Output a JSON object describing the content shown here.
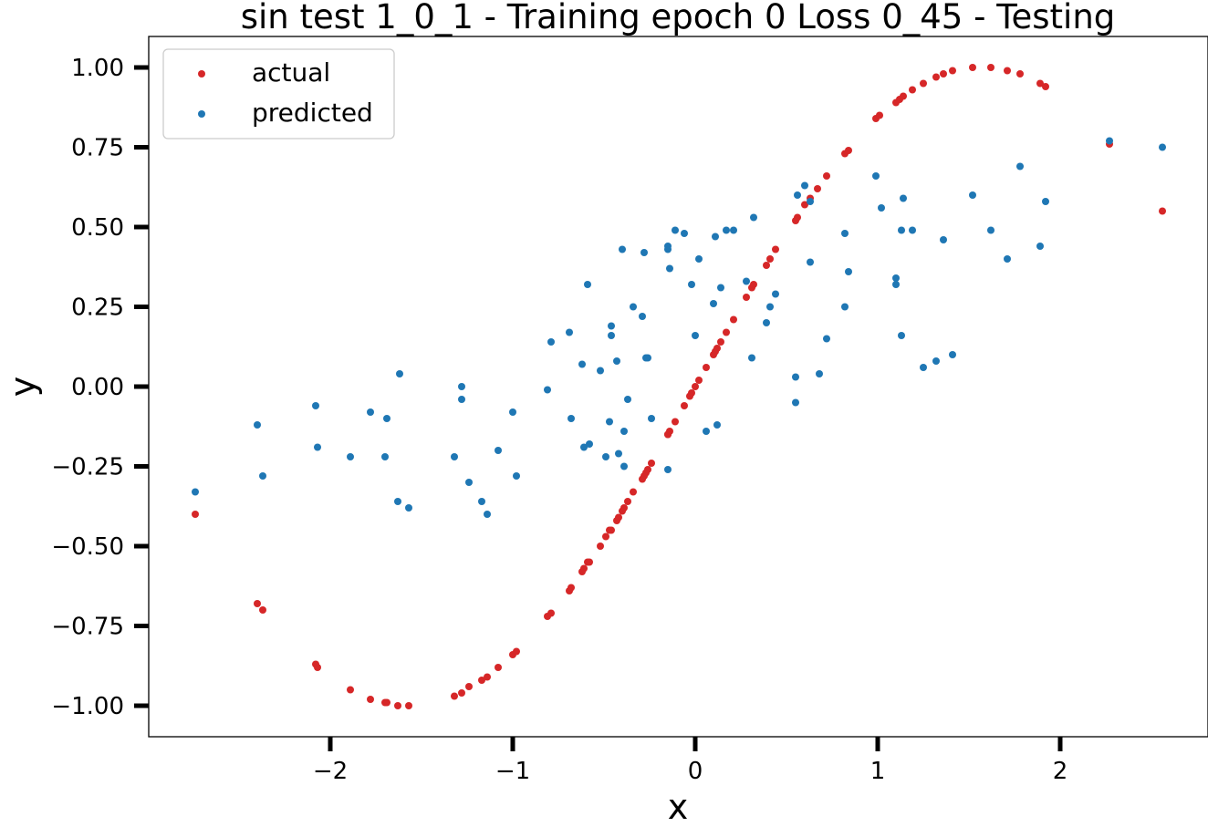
{
  "chart_data": {
    "type": "scatter",
    "title": "sin test 1_0_1 - Training epoch 0 Loss 0_45 - Testing",
    "xlabel": "x",
    "ylabel": "y",
    "xlim": [
      -3.0,
      2.8
    ],
    "ylim": [
      -1.1,
      1.1
    ],
    "xticks": [
      -2,
      -1,
      0,
      1,
      2
    ],
    "xtick_labels": [
      "−2",
      "−1",
      "0",
      "1",
      "2"
    ],
    "yticks": [
      1.0,
      0.75,
      0.5,
      0.25,
      0.0,
      -0.25,
      -0.5,
      -0.75,
      -1.0
    ],
    "ytick_labels": [
      "1.00",
      "0.75",
      "0.50",
      "0.25",
      "0.00",
      "−0.25",
      "−0.50",
      "−0.75",
      "−1.00"
    ],
    "grid": false,
    "legend": "top-left",
    "series": [
      {
        "name": "actual",
        "color": "#d62728",
        "points": [
          [
            -2.74,
            -0.4
          ],
          [
            -2.4,
            -0.68
          ],
          [
            -2.37,
            -0.7
          ],
          [
            -2.08,
            -0.87
          ],
          [
            -2.07,
            -0.88
          ],
          [
            -1.89,
            -0.95
          ],
          [
            -1.78,
            -0.98
          ],
          [
            -1.7,
            -0.99
          ],
          [
            -1.69,
            -0.99
          ],
          [
            -1.63,
            -1.0
          ],
          [
            -1.57,
            -1.0
          ],
          [
            -1.32,
            -0.97
          ],
          [
            -1.28,
            -0.96
          ],
          [
            -1.24,
            -0.94
          ],
          [
            -1.17,
            -0.92
          ],
          [
            -1.14,
            -0.91
          ],
          [
            -1.08,
            -0.88
          ],
          [
            -1.0,
            -0.84
          ],
          [
            -0.98,
            -0.83
          ],
          [
            -0.81,
            -0.72
          ],
          [
            -0.79,
            -0.71
          ],
          [
            -0.69,
            -0.64
          ],
          [
            -0.68,
            -0.63
          ],
          [
            -0.62,
            -0.58
          ],
          [
            -0.61,
            -0.57
          ],
          [
            -0.59,
            -0.55
          ],
          [
            -0.58,
            -0.55
          ],
          [
            -0.52,
            -0.5
          ],
          [
            -0.49,
            -0.47
          ],
          [
            -0.47,
            -0.45
          ],
          [
            -0.46,
            -0.45
          ],
          [
            -0.43,
            -0.42
          ],
          [
            -0.42,
            -0.41
          ],
          [
            -0.4,
            -0.39
          ],
          [
            -0.39,
            -0.38
          ],
          [
            -0.37,
            -0.36
          ],
          [
            -0.34,
            -0.33
          ],
          [
            -0.29,
            -0.29
          ],
          [
            -0.28,
            -0.28
          ],
          [
            -0.27,
            -0.27
          ],
          [
            -0.26,
            -0.26
          ],
          [
            -0.24,
            -0.24
          ],
          [
            -0.15,
            -0.15
          ],
          [
            -0.15,
            -0.15
          ],
          [
            -0.14,
            -0.14
          ],
          [
            -0.11,
            -0.11
          ],
          [
            -0.06,
            -0.06
          ],
          [
            -0.03,
            -0.03
          ],
          [
            -0.02,
            -0.02
          ],
          [
            0.0,
            0.0
          ],
          [
            0.02,
            0.02
          ],
          [
            0.06,
            0.06
          ],
          [
            0.1,
            0.1
          ],
          [
            0.11,
            0.11
          ],
          [
            0.12,
            0.12
          ],
          [
            0.14,
            0.14
          ],
          [
            0.17,
            0.17
          ],
          [
            0.21,
            0.21
          ],
          [
            0.28,
            0.28
          ],
          [
            0.31,
            0.31
          ],
          [
            0.32,
            0.32
          ],
          [
            0.39,
            0.38
          ],
          [
            0.41,
            0.4
          ],
          [
            0.44,
            0.43
          ],
          [
            0.55,
            0.52
          ],
          [
            0.56,
            0.53
          ],
          [
            0.6,
            0.57
          ],
          [
            0.63,
            0.59
          ],
          [
            0.67,
            0.62
          ],
          [
            0.72,
            0.66
          ],
          [
            0.82,
            0.73
          ],
          [
            0.84,
            0.74
          ],
          [
            0.99,
            0.84
          ],
          [
            1.01,
            0.85
          ],
          [
            1.1,
            0.89
          ],
          [
            1.12,
            0.9
          ],
          [
            1.14,
            0.91
          ],
          [
            1.19,
            0.93
          ],
          [
            1.25,
            0.95
          ],
          [
            1.32,
            0.97
          ],
          [
            1.36,
            0.98
          ],
          [
            1.41,
            0.99
          ],
          [
            1.52,
            1.0
          ],
          [
            1.62,
            1.0
          ],
          [
            1.71,
            0.99
          ],
          [
            1.78,
            0.98
          ],
          [
            1.89,
            0.95
          ],
          [
            1.92,
            0.94
          ],
          [
            2.27,
            0.76
          ],
          [
            2.56,
            0.55
          ]
        ]
      },
      {
        "name": "predicted",
        "color": "#1f77b4",
        "points": [
          [
            -2.74,
            -0.33
          ],
          [
            -2.4,
            -0.12
          ],
          [
            -2.37,
            -0.28
          ],
          [
            -2.08,
            -0.06
          ],
          [
            -2.07,
            -0.19
          ],
          [
            -1.89,
            -0.22
          ],
          [
            -1.78,
            -0.08
          ],
          [
            -1.7,
            -0.22
          ],
          [
            -1.69,
            -0.1
          ],
          [
            -1.63,
            -0.36
          ],
          [
            -1.62,
            0.04
          ],
          [
            -1.57,
            -0.38
          ],
          [
            -1.32,
            -0.22
          ],
          [
            -1.28,
            0.0
          ],
          [
            -1.28,
            -0.04
          ],
          [
            -1.24,
            -0.3
          ],
          [
            -1.17,
            -0.36
          ],
          [
            -1.14,
            -0.4
          ],
          [
            -1.08,
            -0.2
          ],
          [
            -1.0,
            -0.08
          ],
          [
            -0.98,
            -0.28
          ],
          [
            -0.81,
            -0.01
          ],
          [
            -0.79,
            0.14
          ],
          [
            -0.69,
            0.17
          ],
          [
            -0.68,
            -0.1
          ],
          [
            -0.62,
            0.07
          ],
          [
            -0.61,
            -0.19
          ],
          [
            -0.59,
            0.32
          ],
          [
            -0.58,
            -0.18
          ],
          [
            -0.52,
            0.05
          ],
          [
            -0.49,
            -0.22
          ],
          [
            -0.47,
            -0.11
          ],
          [
            -0.46,
            0.16
          ],
          [
            -0.46,
            0.19
          ],
          [
            -0.43,
            0.08
          ],
          [
            -0.42,
            -0.21
          ],
          [
            -0.4,
            0.43
          ],
          [
            -0.39,
            -0.14
          ],
          [
            -0.39,
            -0.25
          ],
          [
            -0.37,
            -0.04
          ],
          [
            -0.34,
            0.25
          ],
          [
            -0.29,
            0.22
          ],
          [
            -0.28,
            0.42
          ],
          [
            -0.27,
            0.09
          ],
          [
            -0.26,
            0.09
          ],
          [
            -0.24,
            -0.1
          ],
          [
            -0.15,
            0.43
          ],
          [
            -0.15,
            0.44
          ],
          [
            -0.14,
            0.37
          ],
          [
            -0.15,
            -0.26
          ],
          [
            -0.11,
            0.49
          ],
          [
            -0.06,
            0.48
          ],
          [
            -0.02,
            0.32
          ],
          [
            0.0,
            0.16
          ],
          [
            0.02,
            0.4
          ],
          [
            0.06,
            -0.14
          ],
          [
            0.1,
            0.26
          ],
          [
            0.11,
            0.47
          ],
          [
            0.12,
            -0.12
          ],
          [
            0.14,
            0.31
          ],
          [
            0.17,
            0.49
          ],
          [
            0.21,
            0.49
          ],
          [
            0.28,
            0.33
          ],
          [
            0.31,
            0.09
          ],
          [
            0.32,
            0.53
          ],
          [
            0.39,
            0.2
          ],
          [
            0.41,
            0.25
          ],
          [
            0.44,
            0.29
          ],
          [
            0.55,
            0.03
          ],
          [
            0.55,
            -0.05
          ],
          [
            0.56,
            0.6
          ],
          [
            0.6,
            0.63
          ],
          [
            0.63,
            0.58
          ],
          [
            0.63,
            0.39
          ],
          [
            0.68,
            0.04
          ],
          [
            0.72,
            0.15
          ],
          [
            0.82,
            0.48
          ],
          [
            0.82,
            0.25
          ],
          [
            0.84,
            0.36
          ],
          [
            0.99,
            0.66
          ],
          [
            1.02,
            0.56
          ],
          [
            1.1,
            0.34
          ],
          [
            1.1,
            0.32
          ],
          [
            1.13,
            0.49
          ],
          [
            1.14,
            0.59
          ],
          [
            1.13,
            0.16
          ],
          [
            1.19,
            0.49
          ],
          [
            1.25,
            0.06
          ],
          [
            1.32,
            0.08
          ],
          [
            1.36,
            0.46
          ],
          [
            1.41,
            0.1
          ],
          [
            1.52,
            0.6
          ],
          [
            1.62,
            0.49
          ],
          [
            1.71,
            0.4
          ],
          [
            1.78,
            0.69
          ],
          [
            1.89,
            0.44
          ],
          [
            1.92,
            0.58
          ],
          [
            2.27,
            0.77
          ],
          [
            2.56,
            0.75
          ]
        ]
      }
    ]
  }
}
